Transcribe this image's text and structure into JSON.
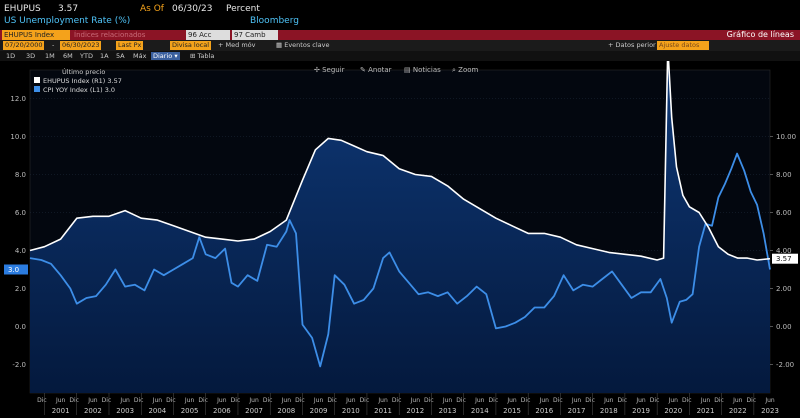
{
  "header": {
    "ticker": "EHUPUS",
    "price": "3.57",
    "asof_label": "As Of",
    "asof_date": "06/30/23",
    "unit": "Percent",
    "description": "US Unemployment Rate (%)",
    "source": "Bloomberg"
  },
  "redbar": {
    "security": "EHUPUS Index",
    "related": "Índices relacionados",
    "actions": "96 Acc",
    "change": "97 Camb",
    "chart_type": "Gráfico de líneas"
  },
  "controls": {
    "start_date": "07/20/2000",
    "end_date": "06/30/2023",
    "field": "Last Px",
    "currency": "Divisa local",
    "moving_avg": "Med móv",
    "events": "Eventos clave",
    "data_label": "Datos perior",
    "data_value": "Ajuste datos"
  },
  "periods": [
    "1D",
    "3D",
    "1M",
    "6M",
    "YTD",
    "1A",
    "5A",
    "Máx"
  ],
  "frequency": "Diario",
  "table_label": "Tabla",
  "toolbar": {
    "follow": "Seguir",
    "annotate": "Anotar",
    "news": "Noticias",
    "zoom": "Zoom"
  },
  "legend": {
    "title": "Último precio",
    "items": [
      {
        "name": "EHUPUS Index (R1)",
        "value": "3.57",
        "color": "#ffffff"
      },
      {
        "name": "CPI YOY Index (L1)",
        "value": "3.0",
        "color": "#3d8ee8"
      }
    ]
  },
  "badges": {
    "left": "3.0",
    "right": "3.57"
  },
  "chart_data": {
    "type": "line",
    "title": "",
    "x_month_labels": [
      "Dic",
      "Jun"
    ],
    "x_year_labels": [
      "2001",
      "2002",
      "2003",
      "2004",
      "2005",
      "2006",
      "2007",
      "2008",
      "2009",
      "2010",
      "2011",
      "2012",
      "2013",
      "2014",
      "2015",
      "2016",
      "2017",
      "2018",
      "2019",
      "2020",
      "2021",
      "2022",
      "2023"
    ],
    "xlim": [
      2000.55,
      2023.5
    ],
    "left_axis": {
      "ticks": [
        "12.0",
        "10.0",
        "8.0",
        "6.0",
        "4.0",
        "2.0",
        "0.0",
        "-2.0"
      ],
      "ylim": [
        -3.5,
        13.5
      ]
    },
    "right_axis": {
      "ticks": [
        "10.00",
        "8.00",
        "6.00",
        "4.00",
        "2.00",
        "0.00",
        "-2.00"
      ],
      "ylim": [
        -3.5,
        13.5
      ]
    },
    "series": [
      {
        "name": "EHUPUS Index (R1)",
        "axis": "right",
        "color": "#ffffff",
        "x": [
          2000.55,
          2001.0,
          2001.5,
          2002.0,
          2002.5,
          2003.0,
          2003.5,
          2004.0,
          2004.5,
          2005.0,
          2005.5,
          2006.0,
          2006.5,
          2007.0,
          2007.5,
          2008.0,
          2008.5,
          2009.0,
          2009.4,
          2009.8,
          2010.2,
          2010.6,
          2011.0,
          2011.5,
          2012.0,
          2012.5,
          2013.0,
          2013.5,
          2014.0,
          2014.5,
          2015.0,
          2015.5,
          2016.0,
          2016.5,
          2017.0,
          2017.5,
          2018.0,
          2018.5,
          2019.0,
          2019.5,
          2020.0,
          2020.2,
          2020.33,
          2020.45,
          2020.6,
          2020.8,
          2021.0,
          2021.3,
          2021.6,
          2021.9,
          2022.2,
          2022.5,
          2022.8,
          2023.1,
          2023.5
        ],
        "y": [
          4.0,
          4.2,
          4.6,
          5.7,
          5.8,
          5.8,
          6.1,
          5.7,
          5.6,
          5.3,
          5.0,
          4.7,
          4.6,
          4.5,
          4.6,
          5.0,
          5.6,
          7.7,
          9.3,
          9.9,
          9.8,
          9.5,
          9.2,
          9.0,
          8.3,
          8.0,
          7.9,
          7.4,
          6.7,
          6.2,
          5.7,
          5.3,
          4.9,
          4.9,
          4.7,
          4.3,
          4.1,
          3.9,
          3.8,
          3.7,
          3.5,
          3.6,
          14.7,
          11.0,
          8.4,
          6.9,
          6.3,
          6.0,
          5.2,
          4.2,
          3.8,
          3.6,
          3.6,
          3.5,
          3.57
        ]
      },
      {
        "name": "CPI YOY Index (L1)",
        "axis": "left",
        "color": "#3d8ee8",
        "x": [
          2000.55,
          2000.9,
          2001.2,
          2001.5,
          2001.8,
          2002.0,
          2002.3,
          2002.6,
          2002.9,
          2003.2,
          2003.5,
          2003.8,
          2004.1,
          2004.4,
          2004.7,
          2005.0,
          2005.3,
          2005.6,
          2005.8,
          2006.0,
          2006.3,
          2006.6,
          2006.8,
          2007.0,
          2007.3,
          2007.6,
          2007.9,
          2008.2,
          2008.5,
          2008.6,
          2008.8,
          2009.0,
          2009.3,
          2009.55,
          2009.8,
          2010.0,
          2010.3,
          2010.6,
          2010.9,
          2011.2,
          2011.5,
          2011.7,
          2012.0,
          2012.3,
          2012.6,
          2012.9,
          2013.2,
          2013.5,
          2013.8,
          2014.1,
          2014.4,
          2014.7,
          2015.0,
          2015.3,
          2015.6,
          2015.9,
          2016.2,
          2016.5,
          2016.8,
          2017.1,
          2017.4,
          2017.7,
          2018.0,
          2018.3,
          2018.6,
          2018.9,
          2019.2,
          2019.5,
          2019.8,
          2020.1,
          2020.3,
          2020.45,
          2020.7,
          2020.9,
          2021.1,
          2021.3,
          2021.5,
          2021.7,
          2021.9,
          2022.1,
          2022.3,
          2022.48,
          2022.7,
          2022.9,
          2023.1,
          2023.3,
          2023.5
        ],
        "y": [
          3.6,
          3.5,
          3.3,
          2.7,
          2.0,
          1.2,
          1.5,
          1.6,
          2.2,
          3.0,
          2.1,
          2.2,
          1.9,
          3.0,
          2.7,
          3.0,
          3.3,
          3.6,
          4.7,
          3.8,
          3.6,
          4.1,
          2.3,
          2.1,
          2.7,
          2.4,
          4.3,
          4.2,
          5.0,
          5.6,
          4.9,
          0.1,
          -0.6,
          -2.1,
          -0.4,
          2.7,
          2.2,
          1.2,
          1.4,
          2.0,
          3.6,
          3.9,
          2.9,
          2.3,
          1.7,
          1.8,
          1.6,
          1.8,
          1.2,
          1.6,
          2.1,
          1.7,
          -0.1,
          0.0,
          0.2,
          0.5,
          1.0,
          1.0,
          1.6,
          2.7,
          1.9,
          2.2,
          2.1,
          2.5,
          2.9,
          2.2,
          1.5,
          1.8,
          1.8,
          2.5,
          1.5,
          0.2,
          1.3,
          1.4,
          1.7,
          4.2,
          5.4,
          5.3,
          6.8,
          7.5,
          8.3,
          9.1,
          8.2,
          7.1,
          6.4,
          4.9,
          3.0
        ]
      }
    ]
  }
}
